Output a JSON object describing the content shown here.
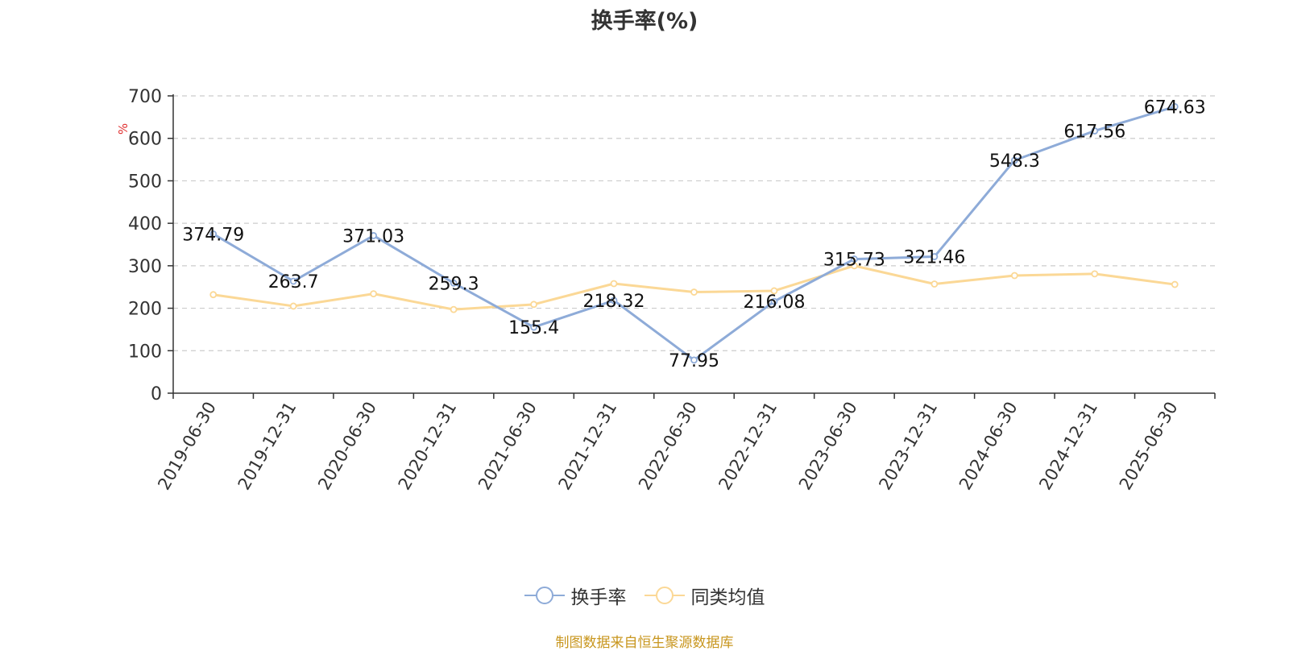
{
  "chart_data": {
    "type": "line",
    "title": "换手率(%)",
    "ylabel": "%",
    "xlabel": "",
    "ylim": [
      0,
      700
    ],
    "yticks": [
      0,
      100,
      200,
      300,
      400,
      500,
      600,
      700
    ],
    "grid": true,
    "legend_position": "bottom-center",
    "categories": [
      "2019-06-30",
      "2019-12-31",
      "2020-06-30",
      "2020-12-31",
      "2021-06-30",
      "2021-12-31",
      "2022-06-30",
      "2022-12-31",
      "2023-06-30",
      "2023-12-31",
      "2024-06-30",
      "2024-12-31",
      "2025-06-30"
    ],
    "series": [
      {
        "name": "换手率",
        "color": "#8eabd8",
        "values": [
          374.79,
          263.7,
          371.03,
          259.3,
          155.4,
          218.32,
          77.95,
          216.08,
          315.73,
          321.46,
          548.3,
          617.56,
          674.63
        ],
        "data_labels": [
          "374.79",
          "263.7",
          "371.03",
          "259.3",
          "155.4",
          "218.32",
          "77.95",
          "216.08",
          "315.73",
          "321.46",
          "548.3",
          "617.56",
          "674.63"
        ]
      },
      {
        "name": "同类均值",
        "color": "#fbd896",
        "values": [
          232,
          205,
          234,
          197,
          209,
          258,
          238,
          241,
          300,
          257,
          277,
          281,
          256
        ]
      }
    ]
  },
  "source_note": "制图数据来自恒生聚源数据库",
  "colors": {
    "axis": "#333333",
    "grid": "#cccccc",
    "ylabel_color": "#e03030",
    "source_color": "#c8961e"
  }
}
